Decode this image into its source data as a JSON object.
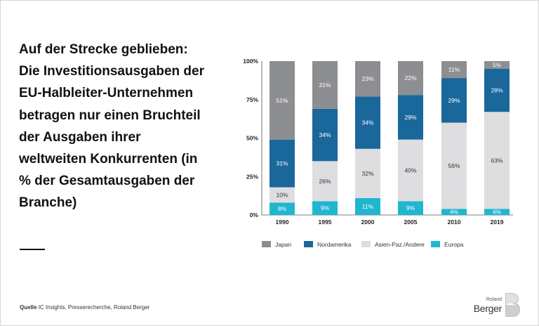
{
  "headline": {
    "lines": [
      "Auf der Strecke geblieben:",
      "Die Investitionsausgaben der",
      "EU-Halbleiter-Unternehmen",
      "betragen nur einen Bruchteil",
      "der Ausgaben ihrer",
      "weltweiten Konkurrenten (in",
      "% der Gesamtausgaben der",
      "Branche)"
    ]
  },
  "source": {
    "label": "Quelle",
    "text": "IC Insights, Presserecherche, Roland Berger"
  },
  "logo": {
    "line1": "Roland",
    "line2": "Berger",
    "mark": "B"
  },
  "colors": {
    "japan": "#8d8e91",
    "nordamerika": "#1a679c",
    "asien": "#dedee1",
    "europa": "#20b6cf"
  },
  "chart_data": {
    "type": "bar",
    "stacked": true,
    "categories": [
      "1990",
      "1995",
      "2000",
      "2005",
      "2010",
      "2019"
    ],
    "series": [
      {
        "name": "Europa",
        "values": [
          8,
          9,
          11,
          9,
          4,
          4
        ],
        "labels": [
          "8%",
          "9%",
          "11%",
          "9%",
          "4%",
          "4%"
        ]
      },
      {
        "name": "Asien-Paz./Andere",
        "values": [
          10,
          26,
          32,
          40,
          56,
          63
        ],
        "labels": [
          "10%",
          "26%",
          "32%",
          "40%",
          "56%",
          "63%"
        ]
      },
      {
        "name": "Nordamerika",
        "values": [
          31,
          34,
          34,
          29,
          29,
          28
        ],
        "labels": [
          "31%",
          "34%",
          "34%",
          "29%",
          "29%",
          "28%"
        ]
      },
      {
        "name": "Japan",
        "values": [
          51,
          31,
          23,
          22,
          11,
          5
        ],
        "labels": [
          "51%",
          "31%",
          "23%",
          "22%",
          "11%",
          "5%"
        ]
      }
    ],
    "legend_order": [
      "Japan",
      "Nordamerika",
      "Asien-Paz./Andere",
      "Europa"
    ],
    "legend_position": "bottom",
    "yticks": [
      "0%",
      "25%",
      "50%",
      "75%",
      "100%"
    ],
    "ylim": [
      0,
      100
    ],
    "grid": false
  }
}
